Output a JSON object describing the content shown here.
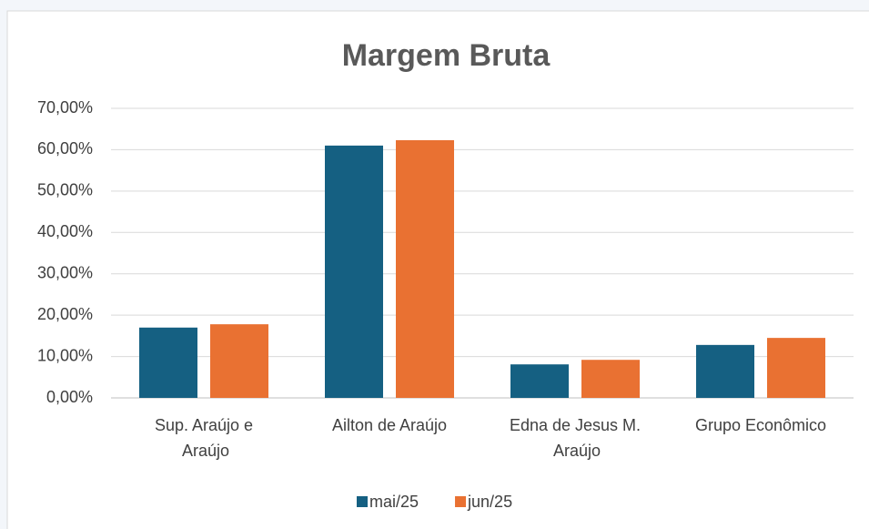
{
  "chart_data": {
    "type": "bar",
    "title": "Margem Bruta",
    "categories": [
      "Sup. Araújo e Araújo",
      "Ailton de Araújo",
      "Edna de Jesus M. Araújo",
      "Grupo Econômico"
    ],
    "series": [
      {
        "name": "mai/25",
        "color": "#156082",
        "values": [
          17.0,
          61.0,
          8.1,
          12.8
        ]
      },
      {
        "name": "jun/25",
        "color": "#e97132",
        "values": [
          17.8,
          62.3,
          9.2,
          14.5
        ]
      }
    ],
    "ylim": [
      0,
      70
    ],
    "yticks": [
      {
        "value": 0,
        "label": "0,00%"
      },
      {
        "value": 10,
        "label": "10,00%"
      },
      {
        "value": 20,
        "label": "20,00%"
      },
      {
        "value": 30,
        "label": "30,00%"
      },
      {
        "value": 40,
        "label": "40,00%"
      },
      {
        "value": 50,
        "label": "50,00%"
      },
      {
        "value": 60,
        "label": "60,00%"
      },
      {
        "value": 70,
        "label": "70,00%"
      }
    ],
    "grid": true,
    "legend": "bottom"
  }
}
